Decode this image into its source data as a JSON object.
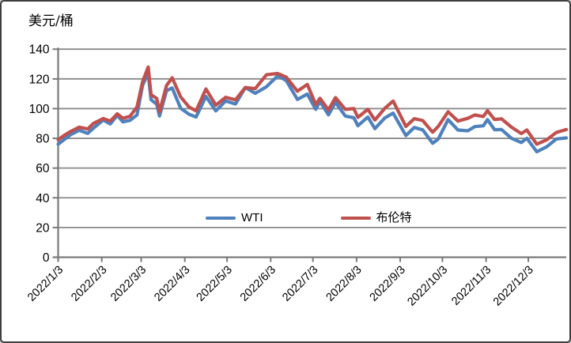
{
  "window": {
    "background": "#ffffff",
    "border_color": "#3f3f3f"
  },
  "legend": {
    "items": [
      {
        "label": "WTI",
        "color": "#4F81BD"
      },
      {
        "label": "布伦特",
        "color": "#C0504D"
      }
    ]
  },
  "chart_data": {
    "type": "line",
    "title": "美元/桶",
    "ylabel": "美元/桶",
    "xlabel": "",
    "grid": true,
    "legend_position": "bottom-center",
    "y_axis": {
      "min": 0,
      "max": 140,
      "step": 20,
      "tick_labels": [
        "0",
        "20",
        "40",
        "60",
        "80",
        "100",
        "120",
        "140"
      ]
    },
    "x_axis": {
      "tick_labels": [
        "2022/1/3",
        "2022/2/3",
        "2022/3/3",
        "2022/4/3",
        "2022/5/3",
        "2022/6/3",
        "2022/7/3",
        "2022/8/3",
        "2022/9/3",
        "2022/10/3",
        "2022/11/3",
        "2022/12/3"
      ]
    },
    "colors": {
      "wti": "#4F81BD",
      "brent": "#C0504D",
      "gridline": "#8a8a8a",
      "axis": "#7a7a7a",
      "text": "#000000"
    },
    "dates": [
      "2022/1/3",
      "2022/1/7",
      "2022/1/12",
      "2022/1/18",
      "2022/1/24",
      "2022/1/28",
      "2022/2/4",
      "2022/2/9",
      "2022/2/14",
      "2022/2/18",
      "2022/2/23",
      "2022/2/28",
      "2022/3/4",
      "2022/3/8",
      "2022/3/10",
      "2022/3/14",
      "2022/3/16",
      "2022/3/21",
      "2022/3/25",
      "2022/3/31",
      "2022/4/6",
      "2022/4/11",
      "2022/4/18",
      "2022/4/25",
      "2022/5/2",
      "2022/5/9",
      "2022/5/16",
      "2022/5/23",
      "2022/5/31",
      "2022/6/8",
      "2022/6/14",
      "2022/6/22",
      "2022/6/29",
      "2022/7/5",
      "2022/7/8",
      "2022/7/14",
      "2022/7/19",
      "2022/7/26",
      "2022/8/1",
      "2022/8/4",
      "2022/8/11",
      "2022/8/16",
      "2022/8/23",
      "2022/8/29",
      "2022/9/7",
      "2022/9/13",
      "2022/9/19",
      "2022/9/26",
      "2022/9/30",
      "2022/10/7",
      "2022/10/14",
      "2022/10/21",
      "2022/10/26",
      "2022/11/1",
      "2022/11/4",
      "2022/11/9",
      "2022/11/14",
      "2022/11/21",
      "2022/11/28",
      "2022/12/2",
      "2022/12/9",
      "2022/12/16",
      "2022/12/23",
      "2022/12/30"
    ],
    "series": [
      {
        "name": "WTI",
        "color": "#4F81BD",
        "values": [
          76.1,
          78.9,
          82.6,
          85.4,
          83.3,
          86.8,
          92.3,
          89.7,
          95.5,
          91.1,
          92.1,
          95.7,
          115.7,
          123.7,
          106.0,
          103.0,
          95.0,
          112.1,
          113.9,
          100.3,
          96.2,
          94.3,
          108.2,
          98.5,
          105.2,
          103.1,
          114.2,
          110.3,
          114.7,
          122.1,
          118.9,
          106.2,
          109.8,
          99.5,
          104.8,
          95.8,
          104.2,
          95.0,
          93.9,
          88.5,
          94.3,
          86.5,
          93.7,
          97.0,
          81.9,
          87.3,
          85.7,
          76.7,
          79.5,
          92.6,
          85.6,
          85.1,
          87.9,
          88.4,
          92.6,
          85.8,
          85.9,
          80.0,
          77.2,
          80.0,
          71.0,
          74.3,
          79.6,
          80.3
        ]
      },
      {
        "name": "布伦特",
        "color": "#C0504D",
        "values": [
          79.0,
          81.8,
          84.7,
          87.5,
          86.3,
          90.0,
          93.3,
          91.6,
          96.5,
          93.5,
          94.8,
          101.0,
          118.1,
          128.0,
          109.3,
          106.9,
          98.0,
          115.6,
          120.7,
          107.9,
          101.1,
          98.5,
          113.2,
          102.3,
          107.6,
          105.9,
          114.2,
          113.4,
          122.8,
          123.6,
          121.2,
          111.7,
          116.3,
          102.8,
          107.0,
          99.1,
          107.4,
          99.5,
          100.0,
          94.1,
          99.6,
          92.3,
          100.2,
          105.1,
          88.0,
          93.2,
          92.0,
          84.1,
          88.0,
          97.9,
          91.6,
          93.5,
          95.7,
          94.7,
          98.6,
          92.7,
          93.1,
          87.5,
          83.2,
          85.6,
          76.1,
          79.0,
          84.0,
          85.9
        ]
      }
    ]
  }
}
